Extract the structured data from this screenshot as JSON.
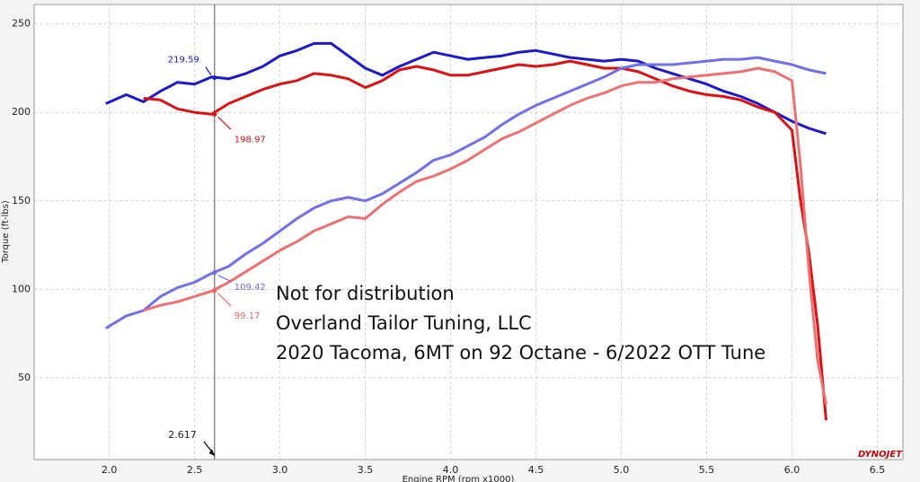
{
  "chart_data": {
    "type": "line",
    "y_label": "Torque (ft-lbs)",
    "x_label": "Engine RPM (rpm x1000)",
    "xlim": [
      1.56,
      6.65
    ],
    "ylim": [
      3.8,
      261
    ],
    "xticks": [
      {
        "value": 2,
        "label": "2.0"
      },
      {
        "value": 2.5,
        "label": "2.5"
      },
      {
        "value": 3,
        "label": "3.0"
      },
      {
        "value": 3.5,
        "label": "3.5"
      },
      {
        "value": 4,
        "label": "4.0"
      },
      {
        "value": 4.5,
        "label": "4.5"
      },
      {
        "value": 5,
        "label": "5.0"
      },
      {
        "value": 5.5,
        "label": "5.5"
      },
      {
        "value": 6,
        "label": "6.0"
      },
      {
        "value": 6.5,
        "label": "6.5"
      }
    ],
    "yticks": [
      50,
      100,
      150,
      200,
      250
    ],
    "grid": true,
    "cursor": 2.617,
    "readouts": [
      219.59,
      198.97,
      109.42,
      99.17
    ],
    "readout_colors": [
      "#1a1acc",
      "#dd1111",
      "#6b6be6",
      "#ee6666"
    ],
    "annotations": [
      "Not for distribution",
      "Overland Tailor Tuning, LLC",
      "2020 Tacoma, 6MT on 92 Octane - 6/2022 OTT Tune"
    ],
    "logo": "DYNOJET",
    "series": [
      {
        "color": "#1a1acc",
        "width": 3,
        "x": [
          1.98,
          2.1,
          2.2,
          2.3,
          2.4,
          2.5,
          2.6,
          2.7,
          2.8,
          2.9,
          3.0,
          3.1,
          3.2,
          3.3,
          3.4,
          3.5,
          3.6,
          3.7,
          3.8,
          3.9,
          4.0,
          4.1,
          4.2,
          4.3,
          4.4,
          4.5,
          4.6,
          4.7,
          4.8,
          4.9,
          5.0,
          5.1,
          5.2,
          5.3,
          5.4,
          5.5,
          5.6,
          5.7,
          5.8,
          5.9,
          6.0,
          6.1,
          6.2
        ],
        "values": [
          205,
          210,
          206,
          212,
          217,
          216,
          220,
          219,
          222,
          226,
          232,
          235,
          239,
          239,
          232,
          225,
          221,
          226,
          230,
          234,
          232,
          230,
          231,
          232,
          234,
          235,
          233,
          231,
          230,
          229,
          230,
          229,
          225,
          222,
          219,
          216,
          212,
          209,
          205,
          200,
          195,
          191,
          188
        ]
      },
      {
        "color": "#dd1111",
        "width": 3,
        "x": [
          2.2,
          2.3,
          2.4,
          2.5,
          2.6,
          2.7,
          2.8,
          2.9,
          3.0,
          3.1,
          3.2,
          3.3,
          3.4,
          3.5,
          3.6,
          3.7,
          3.8,
          3.9,
          4.0,
          4.1,
          4.2,
          4.3,
          4.4,
          4.5,
          4.6,
          4.7,
          4.8,
          4.9,
          5.0,
          5.1,
          5.2,
          5.3,
          5.4,
          5.5,
          5.6,
          5.7,
          5.8,
          5.9,
          6.0,
          6.05,
          6.1,
          6.15,
          6.2
        ],
        "values": [
          208,
          207,
          202,
          200,
          199,
          205,
          209,
          213,
          216,
          218,
          222,
          221,
          219,
          214,
          218,
          224,
          226,
          224,
          221,
          221,
          223,
          225,
          227,
          226,
          227,
          229,
          227,
          225,
          225,
          223,
          219,
          215,
          212,
          210,
          209,
          207,
          203,
          200,
          190,
          150,
          120,
          80,
          26
        ]
      },
      {
        "color": "#7070ea",
        "width": 3,
        "x": [
          1.98,
          2.1,
          2.2,
          2.3,
          2.4,
          2.5,
          2.6,
          2.7,
          2.8,
          2.9,
          3.0,
          3.1,
          3.2,
          3.3,
          3.4,
          3.5,
          3.6,
          3.7,
          3.8,
          3.9,
          4.0,
          4.1,
          4.2,
          4.3,
          4.4,
          4.5,
          4.6,
          4.7,
          4.8,
          4.9,
          5.0,
          5.1,
          5.2,
          5.3,
          5.4,
          5.5,
          5.6,
          5.7,
          5.8,
          5.9,
          6.0,
          6.1,
          6.2
        ],
        "values": [
          78,
          85,
          88,
          96,
          101,
          104,
          109,
          113,
          120,
          126,
          133,
          140,
          146,
          150,
          152,
          150,
          154,
          160,
          166,
          173,
          176,
          181,
          186,
          193,
          199,
          204,
          208,
          212,
          216,
          220,
          225,
          227,
          227,
          227,
          228,
          229,
          230,
          230,
          231,
          229,
          227,
          224,
          222
        ]
      },
      {
        "color": "#ee7070",
        "width": 3,
        "x": [
          2.2,
          2.3,
          2.4,
          2.5,
          2.6,
          2.7,
          2.8,
          2.9,
          3.0,
          3.1,
          3.2,
          3.3,
          3.4,
          3.5,
          3.6,
          3.7,
          3.8,
          3.9,
          4.0,
          4.1,
          4.2,
          4.3,
          4.4,
          4.5,
          4.6,
          4.7,
          4.8,
          4.9,
          5.0,
          5.1,
          5.2,
          5.3,
          5.4,
          5.5,
          5.6,
          5.7,
          5.8,
          5.9,
          6.0,
          6.05,
          6.1,
          6.15,
          6.2
        ],
        "values": [
          88,
          91,
          93,
          96,
          99,
          104,
          110,
          116,
          122,
          127,
          133,
          137,
          141,
          140,
          148,
          155,
          161,
          164,
          168,
          173,
          179,
          185,
          189,
          194,
          199,
          204,
          208,
          211,
          215,
          217,
          217,
          219,
          220,
          221,
          222,
          223,
          225,
          223,
          218,
          170,
          110,
          60,
          35
        ]
      }
    ]
  }
}
